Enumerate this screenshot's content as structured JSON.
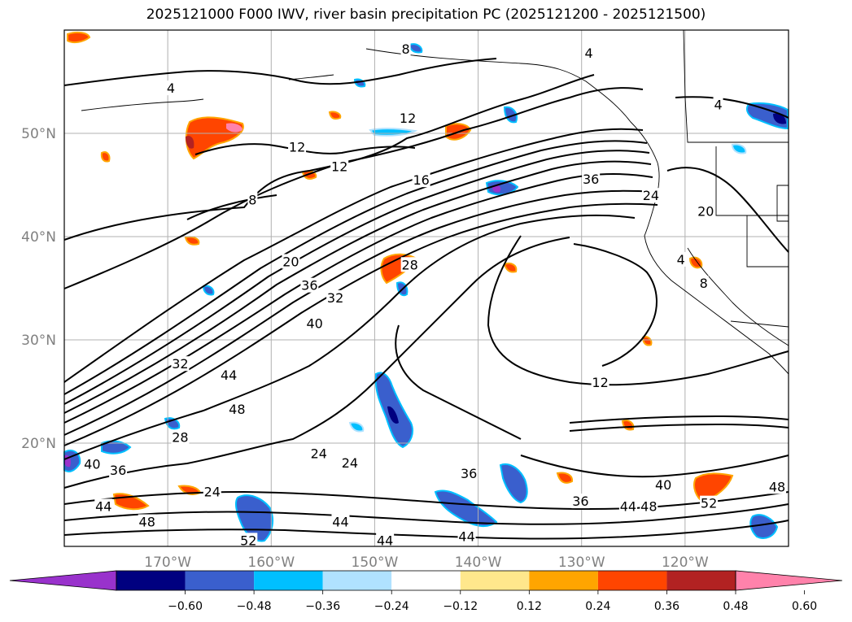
{
  "title": "2025121000 F000 IWV, river basin precipitation PC (2025121200 - 2025121500)",
  "map": {
    "lon_range": [
      -180,
      -110
    ],
    "lat_range": [
      10,
      60
    ],
    "lat_labels": [
      {
        "text": "50°N",
        "lat": 50
      },
      {
        "text": "40°N",
        "lat": 40
      },
      {
        "text": "30°N",
        "lat": 30
      },
      {
        "text": "20°N",
        "lat": 20
      }
    ],
    "lon_labels": [
      {
        "text": "170°W",
        "lon": -170
      },
      {
        "text": "160°W",
        "lon": -160
      },
      {
        "text": "150°W",
        "lon": -150
      },
      {
        "text": "140°W",
        "lon": -140
      },
      {
        "text": "130°W",
        "lon": -130
      },
      {
        "text": "120°W",
        "lon": -120
      }
    ],
    "contour_labels": [
      {
        "text": "8",
        "lon": -147.0,
        "lat": 58.2
      },
      {
        "text": "4",
        "lon": -129.3,
        "lat": 57.8
      },
      {
        "text": "4",
        "lon": -169.7,
        "lat": 54.4
      },
      {
        "text": "12",
        "lon": -146.8,
        "lat": 51.5
      },
      {
        "text": "4",
        "lon": -116.8,
        "lat": 52.8
      },
      {
        "text": "12",
        "lon": -157.5,
        "lat": 48.7
      },
      {
        "text": "12",
        "lon": -153.4,
        "lat": 46.8
      },
      {
        "text": "16",
        "lon": -145.5,
        "lat": 45.5
      },
      {
        "text": "36",
        "lon": -129.1,
        "lat": 45.6
      },
      {
        "text": "8",
        "lon": -161.8,
        "lat": 43.6
      },
      {
        "text": "24",
        "lon": -123.3,
        "lat": 44.0
      },
      {
        "text": "20",
        "lon": -118.0,
        "lat": 42.5
      },
      {
        "text": "20",
        "lon": -158.1,
        "lat": 37.6
      },
      {
        "text": "28",
        "lon": -146.6,
        "lat": 37.3
      },
      {
        "text": "36",
        "lon": -156.3,
        "lat": 35.3
      },
      {
        "text": "32",
        "lon": -153.8,
        "lat": 34.1
      },
      {
        "text": "40",
        "lon": -155.8,
        "lat": 31.6
      },
      {
        "text": "8",
        "lon": -118.2,
        "lat": 35.5
      },
      {
        "text": "4",
        "lon": -120.4,
        "lat": 37.8
      },
      {
        "text": "32",
        "lon": -168.8,
        "lat": 27.7
      },
      {
        "text": "44",
        "lon": -164.1,
        "lat": 26.6
      },
      {
        "text": "12",
        "lon": -128.2,
        "lat": 25.9
      },
      {
        "text": "48",
        "lon": -163.3,
        "lat": 23.3
      },
      {
        "text": "28",
        "lon": -168.8,
        "lat": 20.6
      },
      {
        "text": "24",
        "lon": -155.4,
        "lat": 19.0
      },
      {
        "text": "24",
        "lon": -152.4,
        "lat": 18.1
      },
      {
        "text": "40",
        "lon": -177.3,
        "lat": 18.0
      },
      {
        "text": "36",
        "lon": -174.8,
        "lat": 17.4
      },
      {
        "text": "36",
        "lon": -140.9,
        "lat": 17.1
      },
      {
        "text": "40",
        "lon": -122.1,
        "lat": 16.0
      },
      {
        "text": "48",
        "lon": -111.1,
        "lat": 15.8
      },
      {
        "text": "24",
        "lon": -165.7,
        "lat": 15.3
      },
      {
        "text": "36",
        "lon": -130.1,
        "lat": 14.4
      },
      {
        "text": "44",
        "lon": -125.5,
        "lat": 13.9
      },
      {
        "text": "48",
        "lon": -123.5,
        "lat": 13.9
      },
      {
        "text": "52",
        "lon": -117.7,
        "lat": 14.2
      },
      {
        "text": "44",
        "lon": -176.2,
        "lat": 13.9
      },
      {
        "text": "48",
        "lon": -172.0,
        "lat": 12.4
      },
      {
        "text": "44",
        "lon": -153.3,
        "lat": 12.4
      },
      {
        "text": "52",
        "lon": -162.2,
        "lat": 10.6
      },
      {
        "text": "44",
        "lon": -149.0,
        "lat": 10.6
      },
      {
        "text": "44",
        "lon": -141.1,
        "lat": 11.0
      }
    ]
  },
  "colorbar": {
    "ticks": [
      "−0.60",
      "−0.48",
      "−0.36",
      "−0.24",
      "−0.12",
      "0.12",
      "0.24",
      "0.36",
      "0.48",
      "0.60"
    ],
    "colors": [
      "#9932cc",
      "#000080",
      "#3a5fcd",
      "#00bfff",
      "#b0e2ff",
      "#ffffff",
      "#ffe78c",
      "#ffa500",
      "#ff4500",
      "#b22222",
      "#ff82ab"
    ]
  }
}
